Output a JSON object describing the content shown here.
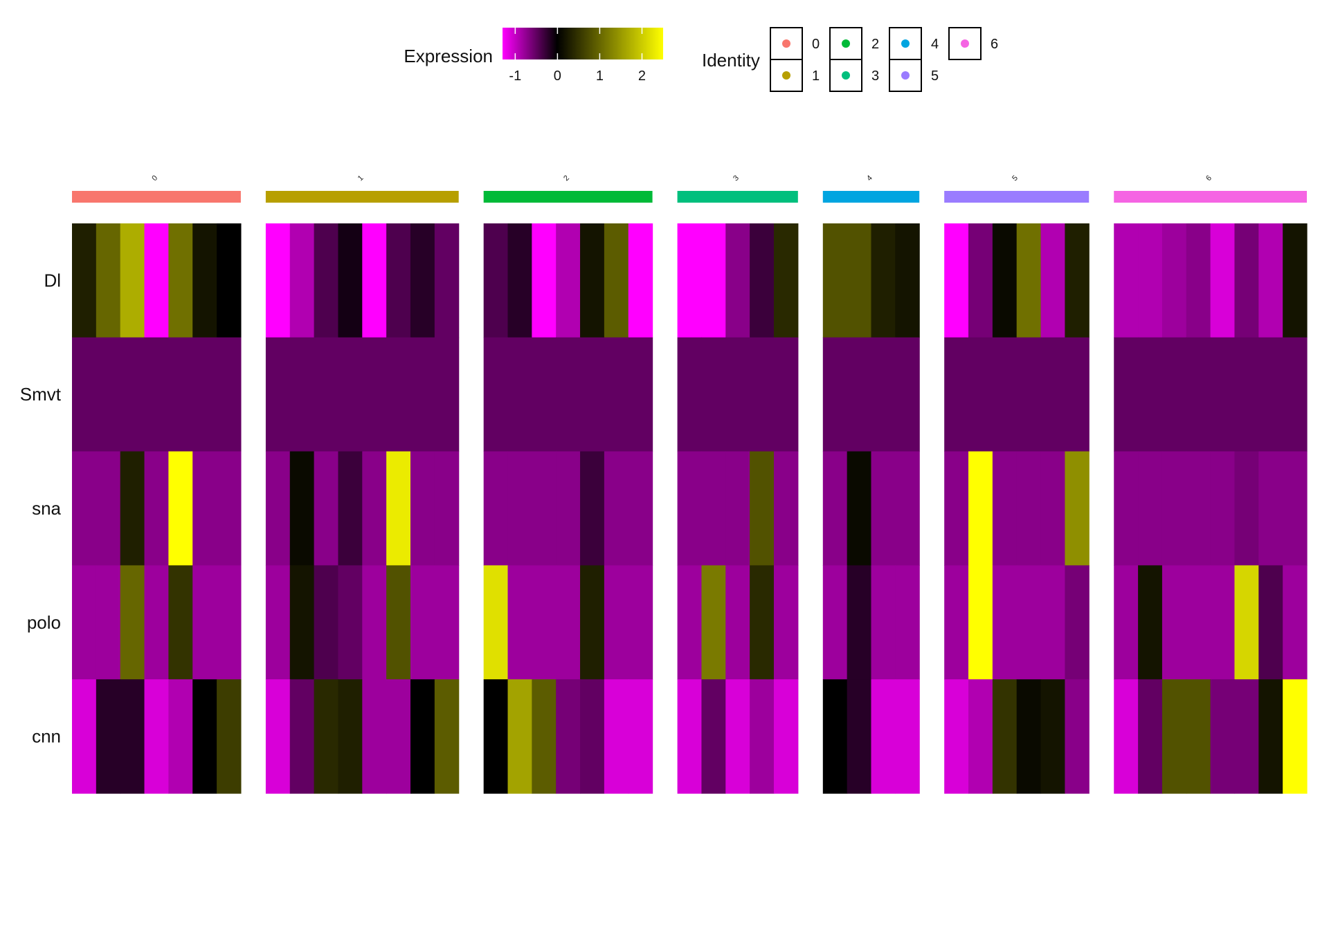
{
  "chart_data": {
    "type": "heatmap",
    "title": "",
    "xlabel": "",
    "ylabel": "",
    "genes": [
      "Dl",
      "Smvt",
      "sna",
      "polo",
      "cnn"
    ],
    "colorbar": {
      "title": "Expression",
      "range": [
        -1.3,
        2.5
      ],
      "ticks": [
        -1,
        0,
        1,
        2
      ],
      "colors": [
        "#FF00FF",
        "#000000",
        "#FFFF00"
      ]
    },
    "identity_legend": {
      "title": "Identity",
      "position": "top",
      "entries": [
        {
          "label": "0",
          "color": "#F8766D"
        },
        {
          "label": "1",
          "color": "#B79F00"
        },
        {
          "label": "2",
          "color": "#00BA38"
        },
        {
          "label": "3",
          "color": "#00BF7D"
        },
        {
          "label": "4",
          "color": "#00A5E0"
        },
        {
          "label": "5",
          "color": "#9A7CFF"
        },
        {
          "label": "6",
          "color": "#F564E3"
        }
      ]
    },
    "groups": [
      {
        "label": "0",
        "color": "#F8766D",
        "cells": 7,
        "values": [
          [
            0.3,
            1.0,
            1.7,
            -1.3,
            1.1,
            0.2,
            0.0
          ],
          [
            -0.5,
            -0.5,
            -0.5,
            -0.5,
            -0.5,
            -0.5,
            -0.5
          ],
          [
            -0.7,
            -0.7,
            0.3,
            -0.7,
            2.5,
            -0.7,
            -0.7
          ],
          [
            -0.8,
            -0.8,
            1.0,
            -0.8,
            0.5,
            -0.8,
            -0.8
          ],
          [
            -1.1,
            -0.2,
            -0.2,
            -1.1,
            -0.9,
            0.0,
            0.6
          ]
        ]
      },
      {
        "label": "1",
        "color": "#B79F00",
        "cells": 8,
        "values": [
          [
            -1.3,
            -0.9,
            -0.4,
            -0.1,
            -1.3,
            -0.4,
            -0.2,
            -0.5
          ],
          [
            -0.5,
            -0.5,
            -0.5,
            -0.5,
            -0.5,
            -0.5,
            -0.5,
            -0.5
          ],
          [
            -0.7,
            0.1,
            -0.7,
            -0.3,
            -0.7,
            2.3,
            -0.7,
            -0.7
          ],
          [
            -0.8,
            0.2,
            -0.4,
            -0.5,
            -0.8,
            0.8,
            -0.8,
            -0.8
          ],
          [
            -1.1,
            -0.5,
            0.4,
            0.3,
            -0.8,
            -0.8,
            0.0,
            0.9
          ]
        ]
      },
      {
        "label": "2",
        "color": "#00BA38",
        "cells": 7,
        "values": [
          [
            -0.4,
            -0.2,
            -1.3,
            -0.9,
            0.2,
            0.9,
            -1.3
          ],
          [
            -0.5,
            -0.5,
            -0.5,
            -0.5,
            -0.5,
            -0.5,
            -0.5
          ],
          [
            -0.7,
            -0.7,
            -0.7,
            -0.7,
            -0.3,
            -0.7,
            -0.7
          ],
          [
            2.2,
            -0.8,
            -0.8,
            -0.8,
            0.3,
            -0.8,
            -0.8
          ],
          [
            0.0,
            1.6,
            0.9,
            -0.6,
            -0.5,
            -1.1,
            -1.1
          ]
        ]
      },
      {
        "label": "3",
        "color": "#00BF7D",
        "cells": 5,
        "values": [
          [
            -1.3,
            -1.3,
            -0.7,
            -0.3,
            0.4
          ],
          [
            -0.5,
            -0.5,
            -0.5,
            -0.5,
            -0.5
          ],
          [
            -0.7,
            -0.7,
            -0.7,
            0.8,
            -0.7
          ],
          [
            -0.8,
            1.2,
            -0.8,
            0.4,
            -0.8
          ],
          [
            -1.1,
            -0.5,
            -1.1,
            -0.8,
            -1.1
          ]
        ]
      },
      {
        "label": "4",
        "color": "#00A5E0",
        "cells": 4,
        "values": [
          [
            0.8,
            0.8,
            0.3,
            0.2
          ],
          [
            -0.5,
            -0.5,
            -0.5,
            -0.5
          ],
          [
            -0.7,
            0.1,
            -0.7,
            -0.7
          ],
          [
            -0.8,
            -0.2,
            -0.8,
            -0.8
          ],
          [
            0.0,
            -0.2,
            -1.1,
            -1.1
          ]
        ]
      },
      {
        "label": "5",
        "color": "#9A7CFF",
        "cells": 6,
        "values": [
          [
            -1.3,
            -0.6,
            0.1,
            1.1,
            -0.9,
            0.3
          ],
          [
            -0.5,
            -0.5,
            -0.5,
            -0.5,
            -0.5,
            -0.5
          ],
          [
            -0.7,
            2.5,
            -0.7,
            -0.7,
            -0.7,
            1.4
          ],
          [
            -0.8,
            2.5,
            -0.8,
            -0.8,
            -0.8,
            -0.6
          ],
          [
            -1.1,
            -0.9,
            0.5,
            0.1,
            0.2,
            -0.7
          ]
        ]
      },
      {
        "label": "6",
        "color": "#F564E3",
        "cells": 8,
        "values": [
          [
            -0.9,
            -0.9,
            -0.8,
            -0.7,
            -1.1,
            -0.6,
            -0.9,
            0.2
          ],
          [
            -0.5,
            -0.5,
            -0.5,
            -0.5,
            -0.5,
            -0.5,
            -0.5,
            -0.5
          ],
          [
            -0.7,
            -0.7,
            -0.7,
            -0.7,
            -0.7,
            -0.6,
            -0.7,
            -0.7
          ],
          [
            -0.8,
            0.2,
            -0.8,
            -0.8,
            -0.8,
            2.1,
            -0.4,
            -0.8
          ],
          [
            -1.1,
            -0.5,
            0.8,
            0.8,
            -0.6,
            -0.6,
            0.2,
            2.5
          ]
        ]
      }
    ]
  }
}
